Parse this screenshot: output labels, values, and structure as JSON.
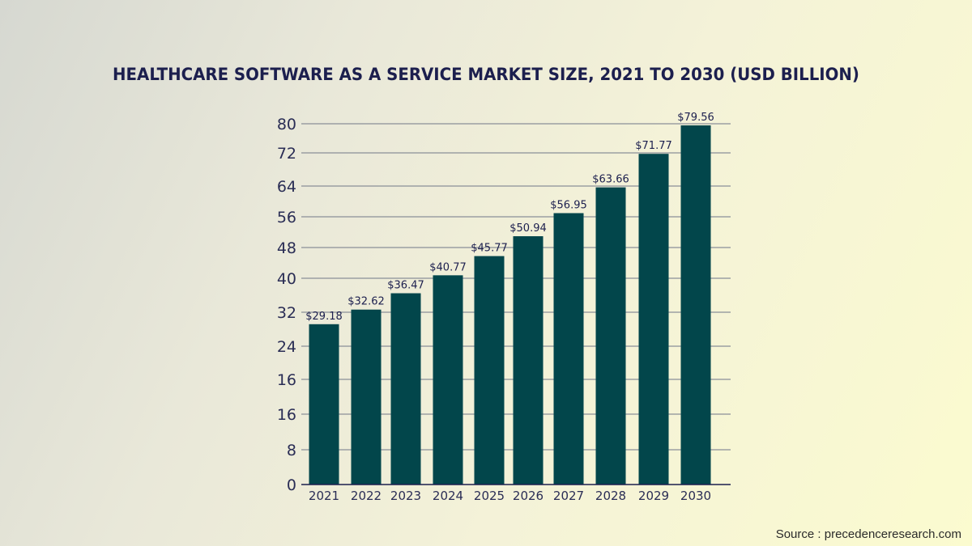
{
  "chart_data": {
    "type": "bar",
    "title": "HEALTHCARE SOFTWARE AS A SERVICE MARKET SIZE, 2021 TO 2030 (USD BILLION)",
    "xlabel": "",
    "ylabel": "",
    "categories": [
      "2021",
      "2022",
      "2023",
      "2024",
      "2025",
      "2026",
      "2027",
      "2028",
      "2029",
      "2030"
    ],
    "values": [
      29.18,
      32.62,
      36.47,
      40.77,
      45.77,
      50.94,
      56.95,
      63.66,
      71.77,
      79.56
    ],
    "data_labels": [
      "$29.18",
      "$32.62",
      "$36.47",
      "$40.77",
      "$45.77",
      "$50.94",
      "$56.95",
      "$63.66",
      "$71.77",
      "$79.56"
    ],
    "ytick_labels": [
      "0",
      "8",
      "16",
      "16",
      "24",
      "32",
      "40",
      "48",
      "56",
      "64",
      "72",
      "80"
    ],
    "ylim": [
      0,
      80
    ],
    "grid": true,
    "legend": "none",
    "bar_color": "#02464b"
  },
  "source": "Source : precedenceresearch.com"
}
